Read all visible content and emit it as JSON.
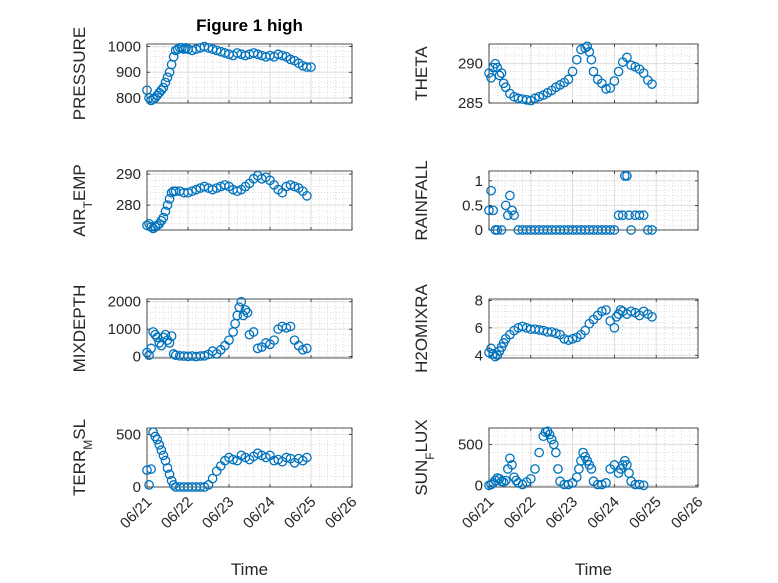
{
  "title": "Figure 1 high",
  "colors": {
    "marker": "#0072BD",
    "axis": "#262626",
    "grid": "#dfdfdf",
    "minor_grid": "#c8c8c8"
  },
  "chart_data": [
    {
      "id": "pressure",
      "type": "scatter",
      "ylabel": "PRESSURE",
      "xlim": [
        "06/21",
        "06/26"
      ],
      "ylim": [
        780,
        1010
      ],
      "yticks": [
        800,
        900,
        1000
      ],
      "xticklabels_shown": false,
      "title": "Figure 1 high",
      "x": [
        21.0,
        21.05,
        21.1,
        21.15,
        21.2,
        21.25,
        21.3,
        21.35,
        21.4,
        21.45,
        21.5,
        21.55,
        21.6,
        21.65,
        21.7,
        21.75,
        21.8,
        21.85,
        21.9,
        21.95,
        22.0,
        22.1,
        22.2,
        22.3,
        22.4,
        22.5,
        22.6,
        22.7,
        22.8,
        22.9,
        23.0,
        23.1,
        23.2,
        23.3,
        23.4,
        23.5,
        23.6,
        23.7,
        23.8,
        23.9,
        24.0,
        24.1,
        24.2,
        24.3,
        24.4,
        24.5,
        24.6,
        24.7,
        24.8,
        24.9,
        25.0
      ],
      "y": [
        830,
        800,
        790,
        795,
        800,
        810,
        820,
        830,
        840,
        860,
        880,
        900,
        930,
        960,
        985,
        990,
        995,
        995,
        990,
        995,
        990,
        985,
        990,
        995,
        1000,
        995,
        990,
        985,
        980,
        975,
        970,
        965,
        975,
        970,
        965,
        970,
        975,
        970,
        965,
        960,
        965,
        960,
        970,
        965,
        960,
        950,
        945,
        935,
        925,
        920,
        920
      ]
    },
    {
      "id": "theta",
      "type": "scatter",
      "ylabel": "THETA",
      "xlim": [
        "06/21",
        "06/26"
      ],
      "ylim": [
        285,
        292.5
      ],
      "yticks": [
        285,
        290
      ],
      "xticklabels_shown": false,
      "x": [
        21.0,
        21.05,
        21.1,
        21.15,
        21.2,
        21.25,
        21.3,
        21.35,
        21.4,
        21.5,
        21.6,
        21.7,
        21.8,
        21.9,
        22.0,
        22.1,
        22.2,
        22.3,
        22.4,
        22.5,
        22.6,
        22.7,
        22.8,
        22.9,
        23.0,
        23.1,
        23.2,
        23.3,
        23.35,
        23.4,
        23.45,
        23.5,
        23.6,
        23.7,
        23.8,
        23.9,
        24.0,
        24.1,
        24.2,
        24.3,
        24.4,
        24.5,
        24.6,
        24.7,
        24.8,
        24.9
      ],
      "y": [
        288.8,
        288.2,
        289.5,
        290.0,
        289.5,
        288.5,
        288.8,
        287.5,
        287.0,
        286.2,
        285.8,
        285.6,
        285.5,
        285.4,
        285.3,
        285.6,
        285.8,
        286.0,
        286.3,
        286.6,
        287.0,
        287.3,
        287.6,
        288.0,
        289.0,
        290.5,
        291.8,
        292.0,
        292.2,
        291.5,
        290.5,
        289.0,
        288.0,
        287.5,
        286.8,
        286.9,
        287.8,
        289.0,
        290.2,
        290.8,
        289.8,
        289.6,
        289.3,
        288.8,
        287.9,
        287.4
      ]
    },
    {
      "id": "air-temp",
      "type": "scatter",
      "ylabel": "AIR_TEMP",
      "xlim": [
        "06/21",
        "06/26"
      ],
      "ylim": [
        272,
        291
      ],
      "yticks": [
        280,
        290
      ],
      "xticklabels_shown": false,
      "x": [
        21.0,
        21.05,
        21.1,
        21.15,
        21.2,
        21.25,
        21.3,
        21.35,
        21.4,
        21.45,
        21.5,
        21.55,
        21.6,
        21.65,
        21.7,
        21.8,
        21.9,
        22.0,
        22.1,
        22.2,
        22.3,
        22.4,
        22.5,
        22.6,
        22.7,
        22.8,
        22.9,
        23.0,
        23.1,
        23.2,
        23.3,
        23.4,
        23.5,
        23.6,
        23.7,
        23.8,
        23.9,
        24.0,
        24.1,
        24.2,
        24.3,
        24.4,
        24.5,
        24.6,
        24.7,
        24.8,
        24.9
      ],
      "y": [
        273.5,
        274,
        273,
        272.5,
        273,
        273.5,
        274,
        275,
        276,
        278,
        280,
        282,
        284,
        284.5,
        284.5,
        284.5,
        284,
        284,
        284.5,
        285,
        285.5,
        286,
        285.5,
        285,
        285.5,
        286,
        286.5,
        286,
        285,
        284.5,
        285,
        286,
        287,
        288.5,
        289.5,
        288.5,
        289,
        288,
        286.5,
        285,
        284,
        286,
        286.5,
        286,
        285.5,
        284.5,
        283
      ]
    },
    {
      "id": "rainfall",
      "type": "scatter",
      "ylabel": "RAINFALL",
      "xlim": [
        "06/21",
        "06/26"
      ],
      "ylim": [
        0,
        1.2
      ],
      "yticks": [
        0,
        0.5,
        1
      ],
      "xticklabels_shown": false,
      "x": [
        21.0,
        21.05,
        21.1,
        21.15,
        21.2,
        21.3,
        21.4,
        21.45,
        21.5,
        21.55,
        21.6,
        21.7,
        21.8,
        21.9,
        22.0,
        22.1,
        22.2,
        22.3,
        22.4,
        22.5,
        22.6,
        22.7,
        22.8,
        22.9,
        23.0,
        23.1,
        23.2,
        23.3,
        23.4,
        23.5,
        23.6,
        23.7,
        23.8,
        23.9,
        24.0,
        24.1,
        24.2,
        24.25,
        24.3,
        24.35,
        24.4,
        24.5,
        24.6,
        24.7,
        24.8,
        24.9
      ],
      "y": [
        0.4,
        0.8,
        0.4,
        0,
        0,
        0,
        0.5,
        0.3,
        0.7,
        0.4,
        0.3,
        0,
        0,
        0,
        0,
        0,
        0,
        0,
        0,
        0,
        0,
        0,
        0,
        0,
        0,
        0,
        0,
        0,
        0,
        0,
        0,
        0,
        0,
        0,
        0,
        0.3,
        0.3,
        1.1,
        1.1,
        0.3,
        0,
        0.3,
        0.3,
        0.3,
        0,
        0
      ]
    },
    {
      "id": "mixdepth",
      "type": "scatter",
      "ylabel": "MIXDEPTH",
      "xlim": [
        "06/21",
        "06/26"
      ],
      "ylim": [
        -50,
        2100
      ],
      "yticks": [
        0,
        1000,
        2000
      ],
      "xticklabels_shown": false,
      "x": [
        21.0,
        21.05,
        21.1,
        21.15,
        21.2,
        21.25,
        21.3,
        21.35,
        21.4,
        21.45,
        21.5,
        21.55,
        21.6,
        21.65,
        21.7,
        21.8,
        21.9,
        22.0,
        22.1,
        22.2,
        22.3,
        22.4,
        22.5,
        22.6,
        22.7,
        22.8,
        22.9,
        23.0,
        23.1,
        23.15,
        23.2,
        23.25,
        23.3,
        23.35,
        23.4,
        23.45,
        23.5,
        23.6,
        23.7,
        23.8,
        23.9,
        24.0,
        24.1,
        24.2,
        24.3,
        24.4,
        24.5,
        24.6,
        24.7,
        24.8,
        24.9
      ],
      "y": [
        150,
        50,
        300,
        900,
        800,
        700,
        500,
        400,
        700,
        800,
        600,
        500,
        750,
        100,
        50,
        30,
        20,
        10,
        20,
        0,
        20,
        30,
        80,
        200,
        100,
        250,
        400,
        600,
        900,
        1200,
        1500,
        1800,
        2000,
        1500,
        1700,
        1600,
        800,
        900,
        300,
        350,
        500,
        450,
        600,
        1000,
        1100,
        1050,
        1100,
        600,
        400,
        250,
        300
      ]
    },
    {
      "id": "h2omixra",
      "type": "scatter",
      "ylabel": "H2OMIXRA",
      "xlim": [
        "06/21",
        "06/26"
      ],
      "ylim": [
        3.8,
        8.1
      ],
      "yticks": [
        4,
        6,
        8
      ],
      "xticklabels_shown": false,
      "x": [
        21.0,
        21.05,
        21.1,
        21.15,
        21.2,
        21.25,
        21.3,
        21.35,
        21.4,
        21.5,
        21.6,
        21.7,
        21.8,
        21.9,
        22.0,
        22.1,
        22.2,
        22.3,
        22.4,
        22.5,
        22.6,
        22.7,
        22.8,
        22.9,
        23.0,
        23.1,
        23.2,
        23.3,
        23.4,
        23.5,
        23.6,
        23.7,
        23.8,
        23.9,
        24.0,
        24.05,
        24.1,
        24.15,
        24.2,
        24.3,
        24.4,
        24.5,
        24.6,
        24.7,
        24.8,
        24.9
      ],
      "y": [
        4.2,
        4.5,
        4.1,
        3.9,
        4.0,
        4.3,
        4.6,
        4.9,
        5.2,
        5.5,
        5.8,
        6.0,
        6.1,
        6.0,
        5.9,
        5.9,
        5.85,
        5.8,
        5.7,
        5.7,
        5.6,
        5.5,
        5.2,
        5.1,
        5.2,
        5.3,
        5.5,
        5.8,
        6.3,
        6.6,
        6.9,
        7.2,
        7.3,
        6.5,
        6.0,
        6.8,
        7.0,
        7.3,
        7.2,
        7.0,
        7.2,
        7.1,
        6.9,
        7.2,
        7.0,
        6.8
      ]
    },
    {
      "id": "terr-msl",
      "type": "scatter",
      "ylabel": "TERR_MSL",
      "xlim": [
        "06/21",
        "06/26"
      ],
      "ylim": [
        0,
        560
      ],
      "yticks": [
        0,
        500
      ],
      "xticklabels": [
        "06/21",
        "06/22",
        "06/23",
        "06/24",
        "06/25",
        "06/26"
      ],
      "xlabel": "Time",
      "x": [
        21.0,
        21.05,
        21.1,
        21.15,
        21.2,
        21.25,
        21.3,
        21.35,
        21.4,
        21.45,
        21.5,
        21.55,
        21.6,
        21.65,
        21.7,
        21.8,
        21.9,
        22.0,
        22.1,
        22.2,
        22.3,
        22.4,
        22.5,
        22.6,
        22.7,
        22.8,
        22.9,
        23.0,
        23.1,
        23.2,
        23.3,
        23.4,
        23.5,
        23.6,
        23.7,
        23.8,
        23.9,
        24.0,
        24.1,
        24.2,
        24.3,
        24.4,
        24.5,
        24.6,
        24.7,
        24.8,
        24.9
      ],
      "y": [
        160,
        20,
        170,
        520,
        480,
        450,
        400,
        350,
        300,
        250,
        180,
        120,
        60,
        20,
        0,
        0,
        0,
        0,
        0,
        0,
        0,
        0,
        20,
        80,
        150,
        200,
        250,
        280,
        260,
        250,
        300,
        280,
        260,
        290,
        320,
        300,
        280,
        300,
        250,
        260,
        240,
        280,
        270,
        230,
        270,
        250,
        280
      ]
    },
    {
      "id": "sun-flux",
      "type": "scatter",
      "ylabel": "SUN_FLUX",
      "xlim": [
        "06/21",
        "06/26"
      ],
      "ylim": [
        -20,
        700
      ],
      "yticks": [
        0,
        500
      ],
      "xticklabels": [
        "06/21",
        "06/22",
        "06/23",
        "06/24",
        "06/25",
        "06/26"
      ],
      "xlabel": "Time",
      "x": [
        21.0,
        21.05,
        21.1,
        21.15,
        21.2,
        21.25,
        21.3,
        21.35,
        21.4,
        21.45,
        21.5,
        21.55,
        21.6,
        21.65,
        21.7,
        21.8,
        21.9,
        22.0,
        22.1,
        22.2,
        22.3,
        22.35,
        22.4,
        22.45,
        22.5,
        22.55,
        22.6,
        22.65,
        22.7,
        22.8,
        22.9,
        23.0,
        23.1,
        23.15,
        23.2,
        23.25,
        23.3,
        23.35,
        23.4,
        23.45,
        23.5,
        23.6,
        23.7,
        23.8,
        23.9,
        24.0,
        24.1,
        24.15,
        24.2,
        24.25,
        24.3,
        24.35,
        24.4,
        24.5,
        24.6,
        24.7
      ],
      "y": [
        0,
        10,
        30,
        60,
        90,
        80,
        50,
        40,
        60,
        200,
        330,
        250,
        100,
        60,
        30,
        10,
        40,
        80,
        200,
        400,
        600,
        650,
        660,
        620,
        560,
        500,
        400,
        200,
        50,
        10,
        10,
        30,
        100,
        200,
        300,
        400,
        350,
        300,
        250,
        200,
        50,
        10,
        10,
        30,
        200,
        250,
        150,
        200,
        250,
        300,
        250,
        150,
        50,
        10,
        10,
        0
      ]
    }
  ]
}
